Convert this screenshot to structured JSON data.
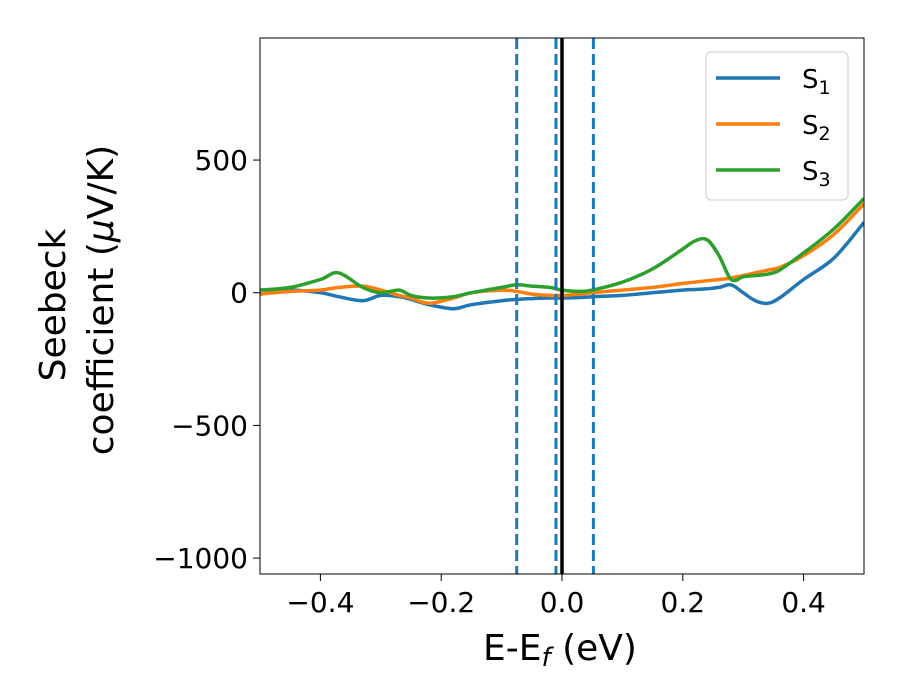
{
  "chart_data": {
    "type": "line",
    "xlabel": {
      "main": "E-E",
      "sub": "f",
      "tail": " (eV)"
    },
    "ylabel": {
      "line1": "Seebeck",
      "line2_main": "coefficient  (",
      "line2_mu": "μ",
      "line2_tail": "V/K)"
    },
    "xlim": [
      -0.5,
      0.5
    ],
    "ylim": [
      -1060,
      960
    ],
    "xticks": [
      -0.4,
      -0.2,
      0.0,
      0.2,
      0.4
    ],
    "xtick_labels": [
      "−0.4",
      "−0.2",
      "0.0",
      "0.2",
      "0.4"
    ],
    "yticks": [
      500,
      0,
      -500,
      -1000
    ],
    "ytick_labels": [
      "500",
      "0",
      "−500",
      "−1000"
    ],
    "grid": false,
    "legend_position": "top-right",
    "vlines": [
      {
        "x": -0.075,
        "style": "dashed",
        "color": "#1f77b4"
      },
      {
        "x": -0.01,
        "style": "dashed",
        "color": "#1f77b4"
      },
      {
        "x": 0.052,
        "style": "dashed",
        "color": "#1f77b4"
      },
      {
        "x": 0.0,
        "style": "solid",
        "color": "#000000"
      }
    ],
    "x": [
      -0.5,
      -0.45,
      -0.4,
      -0.37,
      -0.33,
      -0.3,
      -0.27,
      -0.25,
      -0.22,
      -0.18,
      -0.15,
      -0.1,
      -0.075,
      -0.05,
      -0.02,
      0.0,
      0.03,
      0.05,
      0.1,
      0.15,
      0.2,
      0.22,
      0.24,
      0.26,
      0.28,
      0.3,
      0.32,
      0.34,
      0.36,
      0.4,
      0.45,
      0.5
    ],
    "series": [
      {
        "name": "S",
        "sub": "1",
        "color": "#1f77b4",
        "values": [
          -5,
          10,
          0,
          -15,
          -30,
          -10,
          -15,
          -25,
          -45,
          -60,
          -45,
          -30,
          -25,
          -22,
          -20,
          -20,
          -18,
          -15,
          -10,
          0,
          10,
          12,
          15,
          20,
          30,
          0,
          -30,
          -40,
          -20,
          50,
          130,
          265
        ]
      },
      {
        "name": "S",
        "sub": "2",
        "color": "#ff7f0e",
        "values": [
          -5,
          5,
          10,
          20,
          25,
          10,
          -10,
          -20,
          -40,
          -20,
          0,
          10,
          5,
          -5,
          -10,
          -10,
          -5,
          0,
          10,
          20,
          35,
          40,
          45,
          50,
          55,
          65,
          75,
          85,
          95,
          140,
          220,
          335
        ]
      },
      {
        "name": "S",
        "sub": "3",
        "color": "#2ca02c",
        "values": [
          10,
          20,
          50,
          75,
          20,
          0,
          10,
          -10,
          -20,
          -15,
          0,
          20,
          30,
          25,
          20,
          10,
          5,
          10,
          40,
          90,
          165,
          195,
          200,
          140,
          50,
          60,
          65,
          70,
          85,
          150,
          240,
          355
        ]
      }
    ]
  }
}
